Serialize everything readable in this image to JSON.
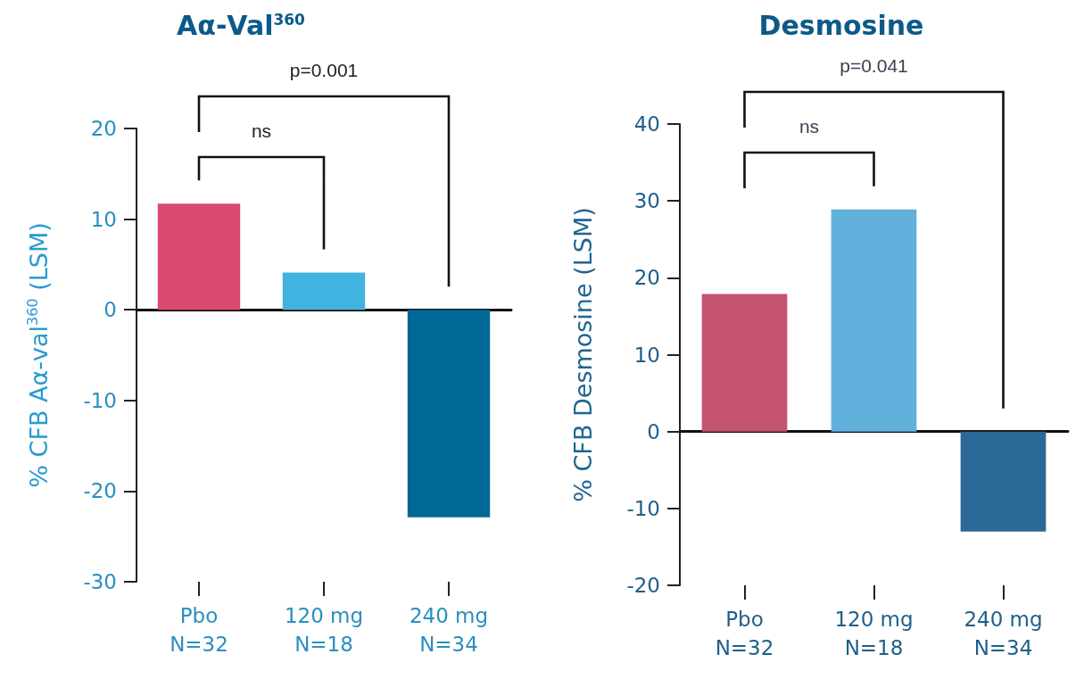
{
  "chart_data": [
    {
      "type": "bar",
      "title": "Aα-Val$^{360}$",
      "ylabel": "% CFB Aα-val$^{360}$ (LSM)",
      "categories": [
        "Pbo\nN=32",
        "120 mg\nN=18",
        "240 mg\nN=34"
      ],
      "values": [
        11.7,
        4.1,
        -22.9
      ],
      "colors": [
        "#d94a72",
        "#41b3e0",
        "#006894"
      ],
      "ylim": [
        -30,
        20
      ],
      "yticks": [
        -30,
        -20,
        -10,
        0,
        10,
        20
      ],
      "annotations": [
        "p=0.001",
        "ns"
      ]
    },
    {
      "type": "bar",
      "title": "Desmosine",
      "ylabel": "% CFB Desmosine (LSM)",
      "categories": [
        "Pbo\nN=32",
        "120 mg\nN=18",
        "240 mg\nN=34"
      ],
      "values": [
        17.9,
        28.9,
        -13.0
      ],
      "colors": [
        "#c4546f",
        "#62b0dc",
        "#2a6898"
      ],
      "ylim": [
        -20,
        40
      ],
      "yticks": [
        -20,
        -10,
        0,
        10,
        20,
        30,
        40
      ],
      "annotations": [
        "p=0.041",
        "ns"
      ]
    }
  ]
}
